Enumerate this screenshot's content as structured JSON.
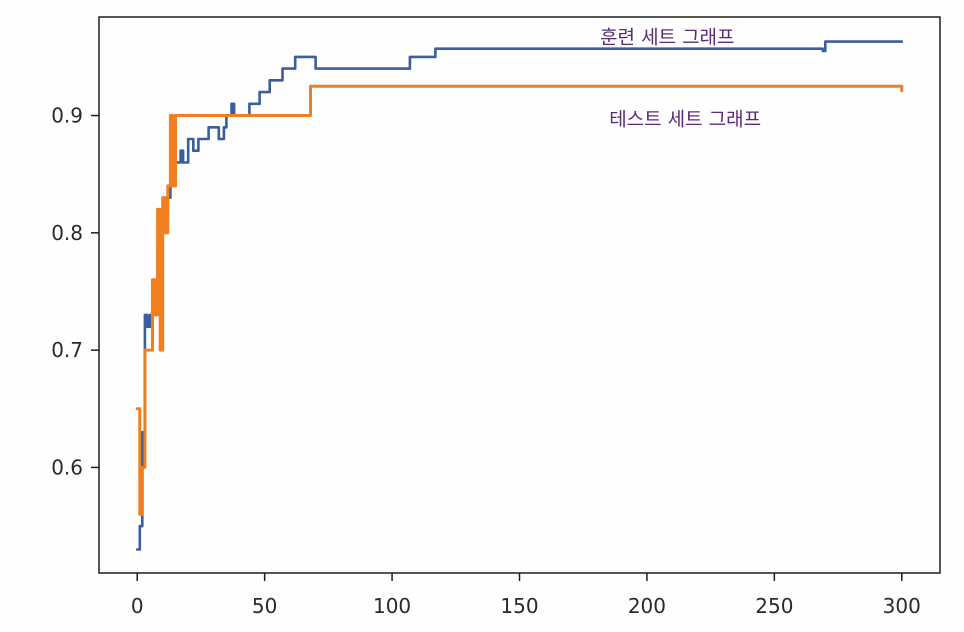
{
  "chart_data": {
    "type": "line",
    "title": "",
    "xlabel": "",
    "ylabel": "",
    "xlim": [
      -15,
      315
    ],
    "ylim": [
      0.51,
      0.984
    ],
    "x_ticks": [
      0,
      50,
      100,
      150,
      200,
      250,
      300
    ],
    "x_tick_labels": [
      "0",
      "50",
      "100",
      "150",
      "200",
      "250",
      "300"
    ],
    "y_ticks": [
      0.6,
      0.7,
      0.8,
      0.9
    ],
    "y_tick_labels": [
      "0.6",
      "0.7",
      "0.8",
      "0.9"
    ],
    "grid": false,
    "legend": "none",
    "series": [
      {
        "color": "#3a5f9c",
        "step": true,
        "points": [
          [
            0,
            0.53
          ],
          [
            1,
            0.55
          ],
          [
            2,
            0.63
          ],
          [
            3,
            0.73
          ],
          [
            4,
            0.72
          ],
          [
            5,
            0.73
          ],
          [
            6,
            0.76
          ],
          [
            7,
            0.73
          ],
          [
            8,
            0.79
          ],
          [
            9,
            0.82
          ],
          [
            10,
            0.8
          ],
          [
            11,
            0.82
          ],
          [
            12,
            0.83
          ],
          [
            13,
            0.85
          ],
          [
            14,
            0.84
          ],
          [
            15,
            0.86
          ],
          [
            17,
            0.87
          ],
          [
            18,
            0.86
          ],
          [
            20,
            0.88
          ],
          [
            22,
            0.87
          ],
          [
            24,
            0.88
          ],
          [
            27,
            0.88
          ],
          [
            28,
            0.89
          ],
          [
            31,
            0.89
          ],
          [
            32,
            0.88
          ],
          [
            34,
            0.89
          ],
          [
            35,
            0.9
          ],
          [
            36,
            0.9
          ],
          [
            37,
            0.91
          ],
          [
            38,
            0.9
          ],
          [
            42,
            0.9
          ],
          [
            44,
            0.91
          ],
          [
            48,
            0.92
          ],
          [
            52,
            0.93
          ],
          [
            56,
            0.93
          ],
          [
            57,
            0.94
          ],
          [
            60,
            0.94
          ],
          [
            62,
            0.95
          ],
          [
            68,
            0.95
          ],
          [
            70,
            0.94
          ],
          [
            106,
            0.94
          ],
          [
            107,
            0.95
          ],
          [
            116,
            0.95
          ],
          [
            117,
            0.957
          ],
          [
            269,
            0.955
          ],
          [
            270,
            0.963
          ],
          [
            300,
            0.963
          ]
        ]
      },
      {
        "color": "#f07f1f",
        "step": true,
        "points": [
          [
            0,
            0.65
          ],
          [
            1,
            0.56
          ],
          [
            2,
            0.6
          ],
          [
            3,
            0.7
          ],
          [
            5,
            0.7
          ],
          [
            6,
            0.76
          ],
          [
            7,
            0.73
          ],
          [
            8,
            0.82
          ],
          [
            9,
            0.7
          ],
          [
            10,
            0.83
          ],
          [
            11,
            0.8
          ],
          [
            12,
            0.84
          ],
          [
            13,
            0.9
          ],
          [
            14,
            0.84
          ],
          [
            15,
            0.9
          ],
          [
            67,
            0.9
          ],
          [
            68,
            0.925
          ],
          [
            300,
            0.921
          ]
        ]
      }
    ],
    "annotations": [
      {
        "text": "훈련 세트 그래프",
        "x": 208,
        "y": 0.965
      },
      {
        "text": "테스트 세트 그래프",
        "x": 215,
        "y": 0.895
      }
    ]
  }
}
